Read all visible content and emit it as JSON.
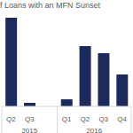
{
  "chart_data": {
    "type": "bar",
    "title": "f Loans with an MFN Sunset",
    "categories": [
      "Q2",
      "Q3",
      null,
      "Q1",
      "Q2",
      "Q3",
      "Q4"
    ],
    "values": [
      25,
      1,
      0,
      2,
      17,
      15,
      9
    ],
    "x_groups": [
      {
        "label": "2015",
        "start": 0,
        "end": 2
      },
      {
        "label": "2016",
        "start": 3,
        "end": 6
      }
    ],
    "color": "#1c2a5c",
    "ylim": [
      0,
      26
    ],
    "tick_labels": "x",
    "grid": false
  }
}
